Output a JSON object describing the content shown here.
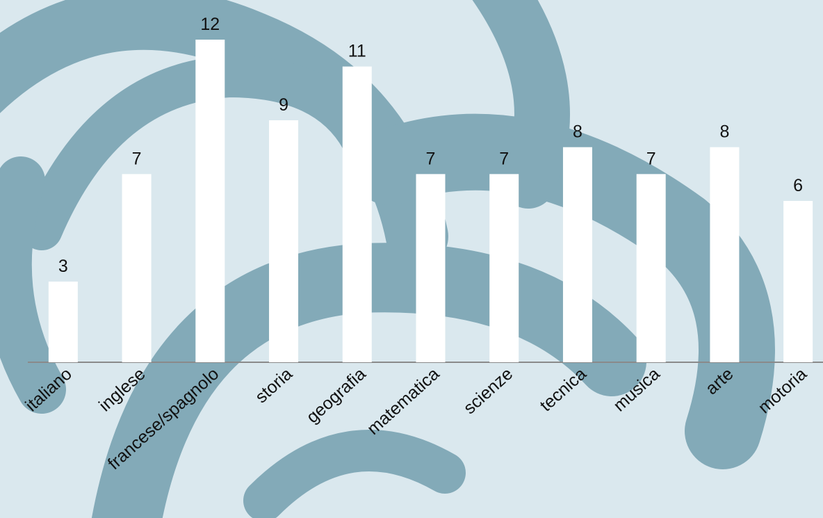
{
  "chart_data": {
    "type": "bar",
    "categories": [
      "italiano",
      "inglese",
      "francese/spagnolo",
      "storia",
      "geografia",
      "matematica",
      "scienze",
      "tecnica",
      "musica",
      "arte",
      "motoria"
    ],
    "values": [
      3,
      7,
      12,
      9,
      11,
      7,
      7,
      8,
      7,
      8,
      6
    ],
    "color": "#ffffff"
  }
}
